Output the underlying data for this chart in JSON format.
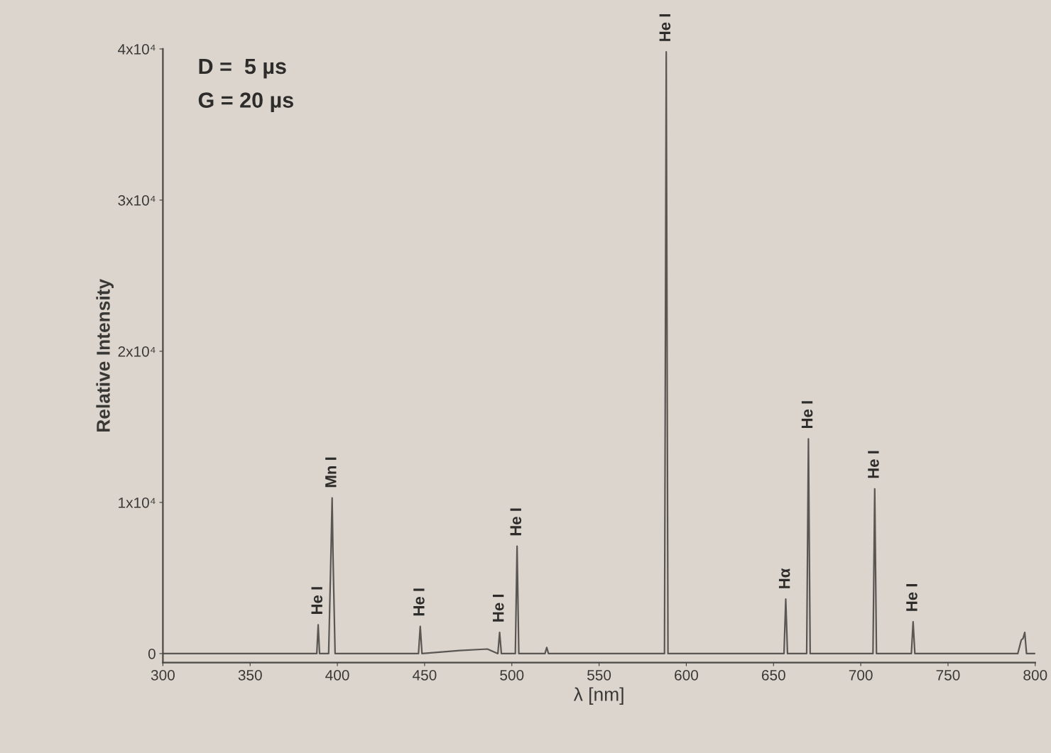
{
  "chart_data": {
    "type": "line",
    "xlabel": "λ [nm]",
    "ylabel": "Relative Intensity",
    "xlim": [
      300,
      800
    ],
    "xticks": [
      300,
      350,
      400,
      450,
      500,
      550,
      600,
      650,
      700,
      750,
      800
    ],
    "ylim": [
      -600,
      40000
    ],
    "yticks": [
      0,
      {
        "value": 10000,
        "label": "1x10⁴"
      },
      {
        "value": 20000,
        "label": "2x10⁴"
      },
      {
        "value": 30000,
        "label": "3x10⁴"
      },
      {
        "value": 40000,
        "label": "4x10⁴"
      }
    ],
    "grid": false,
    "legend": false,
    "marker": "none",
    "line_style": "solid",
    "series": [
      {
        "color": "#5a5753",
        "x": [
          300,
          350,
          387,
          388.2,
          389,
          389.8,
          395,
          396.3,
          397,
          397.5,
          398.7,
          430,
          446.5,
          447.5,
          448.5,
          470,
          486,
          492,
          493,
          494,
          502,
          503,
          504,
          519,
          520,
          521,
          587.5,
          588.5,
          589.5,
          656,
          657,
          658,
          669,
          670,
          671,
          707,
          708,
          709,
          729,
          730,
          731,
          790,
          792,
          793,
          794,
          795,
          800
        ],
        "values": [
          0,
          0,
          0,
          0,
          1900,
          0,
          0,
          6500,
          10300,
          6500,
          0,
          0,
          0,
          1800,
          0,
          200,
          300,
          0,
          1400,
          0,
          0,
          7100,
          0,
          0,
          400,
          0,
          0,
          39800,
          0,
          0,
          3600,
          0,
          0,
          14200,
          0,
          0,
          10900,
          0,
          0,
          2100,
          0,
          0,
          900,
          1000,
          1400,
          0,
          0
        ]
      }
    ],
    "annotations": [
      "D =  5 µs",
      "G = 20 µs",
      {
        "text": "He I",
        "x": 389,
        "y": 1900
      },
      {
        "text": "Mn I",
        "x": 397,
        "y": 10300
      },
      {
        "text": "He I",
        "x": 447.5,
        "y": 1800
      },
      {
        "text": "He I",
        "x": 493,
        "y": 1400
      },
      {
        "text": "He I",
        "x": 503,
        "y": 7100
      },
      {
        "text": "He I",
        "x": 588.5,
        "y": 39800
      },
      {
        "text": "Hα",
        "x": 657,
        "y": 3600
      },
      {
        "text": "He I",
        "x": 670,
        "y": 14200
      },
      {
        "text": "He I",
        "x": 708,
        "y": 10900
      },
      {
        "text": "He I",
        "x": 730,
        "y": 2100
      }
    ]
  }
}
